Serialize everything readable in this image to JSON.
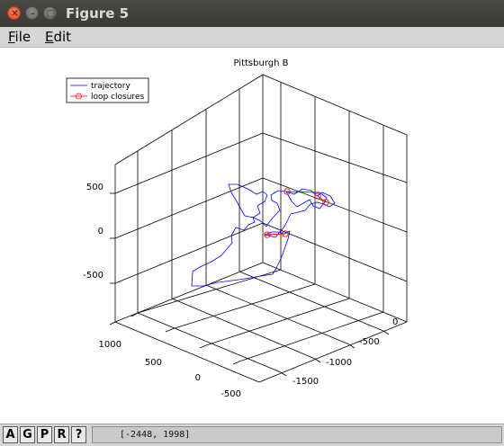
{
  "window": {
    "title": "Figure 5"
  },
  "menu": {
    "file_first": "F",
    "file_rest": "ile",
    "edit_first": "E",
    "edit_rest": "dit"
  },
  "toolbar": {
    "btn_a": "A",
    "btn_g": "G",
    "btn_p": "P",
    "btn_r": "R",
    "btn_help": "?",
    "coordinates": "[-2448, 1998]"
  },
  "chart_data": {
    "type": "line",
    "title": "Pittsburgh B",
    "legend": {
      "placement": "top-left",
      "entries": [
        "trajectory",
        "loop closures"
      ]
    },
    "grid": true,
    "series": [
      {
        "name": "trajectory",
        "color": "#0000ff"
      },
      {
        "name": "loop closures",
        "color": "#ff0000",
        "marker": "circle"
      }
    ],
    "z_ticks": [
      "500",
      "0",
      "-500"
    ],
    "y_ticks": [
      "1000",
      "500",
      "0",
      "-500"
    ],
    "x_ticks": [
      "0",
      "-500",
      "-1000",
      "-1500"
    ],
    "loop_closure_points": [
      {
        "x": -830,
        "y": 120,
        "z": 320
      },
      {
        "x": -1050,
        "y": 330,
        "z": 380
      },
      {
        "x": -1250,
        "y": 300,
        "z": 260
      },
      {
        "x": -1000,
        "y": 700,
        "z": 80
      },
      {
        "x": -1120,
        "y": 620,
        "z": -10
      }
    ]
  }
}
